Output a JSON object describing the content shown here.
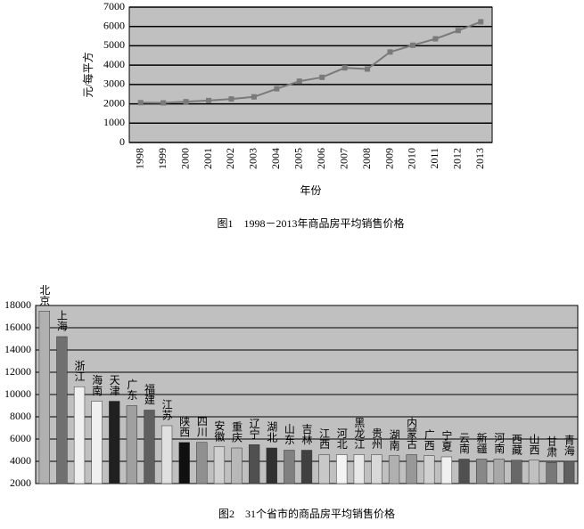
{
  "chart_data": [
    {
      "type": "line",
      "y_label": "元/每平方",
      "x_label": "年份",
      "caption": "图1　1998－2013年商品房平均销售价格",
      "categories": [
        "1998",
        "1999",
        "2000",
        "2001",
        "2002",
        "2003",
        "2004",
        "2005",
        "2006",
        "2007",
        "2008",
        "2009",
        "2010",
        "2011",
        "2012",
        "2013"
      ],
      "values": [
        2060,
        2050,
        2110,
        2170,
        2250,
        2360,
        2780,
        3170,
        3370,
        3860,
        3800,
        4680,
        5030,
        5360,
        5790,
        6240
      ],
      "color": "#7a7a7a",
      "ylim": [
        0,
        7000
      ],
      "yticks": [
        0,
        1000,
        2000,
        3000,
        4000,
        5000,
        6000,
        7000
      ],
      "grid": true
    },
    {
      "type": "bar",
      "caption": "图2　31个省市的商品房平均销售价格",
      "categories": [
        "北京",
        "上海",
        "浙江",
        "海南",
        "天津",
        "广东",
        "福建",
        "江苏",
        "陕西",
        "四川",
        "安徽",
        "重庆",
        "辽宁",
        "湖北",
        "山东",
        "吉林",
        "江西",
        "河北",
        "黑龙江",
        "贵州",
        "湖南",
        "内蒙古",
        "广西",
        "宁夏",
        "云南",
        "新疆",
        "河南",
        "西藏",
        "山西",
        "甘肃",
        "青海"
      ],
      "values": [
        17500,
        15200,
        10700,
        9400,
        9400,
        9000,
        8600,
        7200,
        5700,
        5700,
        5300,
        5200,
        5500,
        5200,
        5000,
        5000,
        4600,
        4600,
        4600,
        4600,
        4500,
        4600,
        4500,
        4400,
        4200,
        4200,
        4200,
        4100,
        4100,
        3900,
        4000
      ],
      "colors": [
        "#b0b0b0",
        "#707070",
        "#f0f0f0",
        "#f0f0f0",
        "#202020",
        "#a0a0a0",
        "#606060",
        "#e0e0e0",
        "#101010",
        "#909090",
        "#d0d0d0",
        "#b8b8b8",
        "#505050",
        "#303030",
        "#808080",
        "#404040",
        "#c8c8c8",
        "#f4f4f4",
        "#e8e8e8",
        "#d8d8d8",
        "#b0b0b0",
        "#989898",
        "#d0d0d0",
        "#f0f0f0",
        "#505050",
        "#888888",
        "#a8a8a8",
        "#686868",
        "#c0c0c0",
        "#787878",
        "#606060"
      ],
      "ylim": [
        2000,
        18000
      ],
      "yticks": [
        2000,
        4000,
        6000,
        8000,
        10000,
        12000,
        14000,
        16000,
        18000
      ],
      "grid": true
    }
  ]
}
